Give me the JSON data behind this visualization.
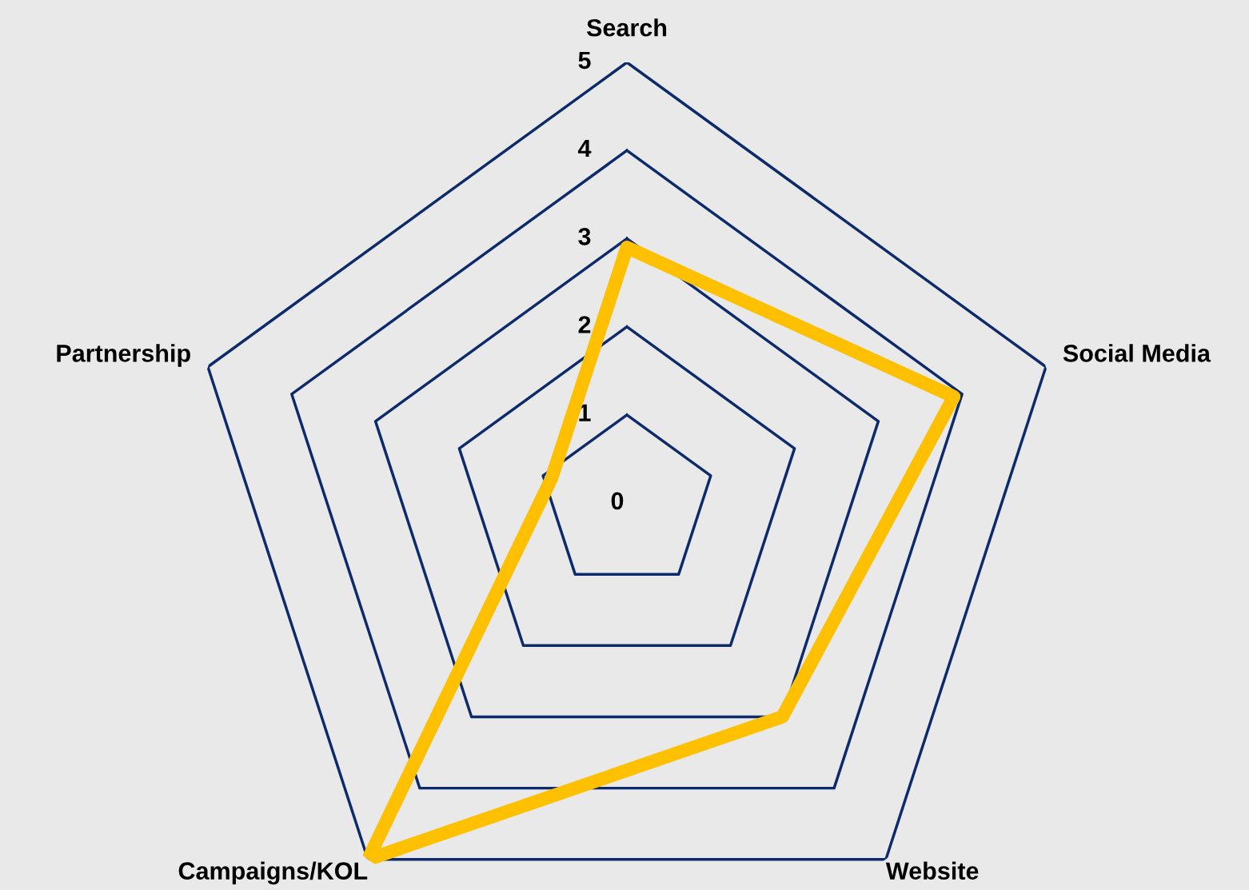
{
  "chart_data": {
    "type": "radar",
    "categories": [
      "Search",
      "Social Media",
      "Website",
      "Campaigns/KOL",
      "Partnership"
    ],
    "series": [
      {
        "color": "#ffc000",
        "values": [
          2.9,
          3.9,
          3.0,
          5.0,
          0.9
        ]
      }
    ],
    "ylim": [
      0,
      5
    ],
    "yticks": [
      0,
      1,
      2,
      3,
      4,
      5
    ],
    "grid": true
  }
}
